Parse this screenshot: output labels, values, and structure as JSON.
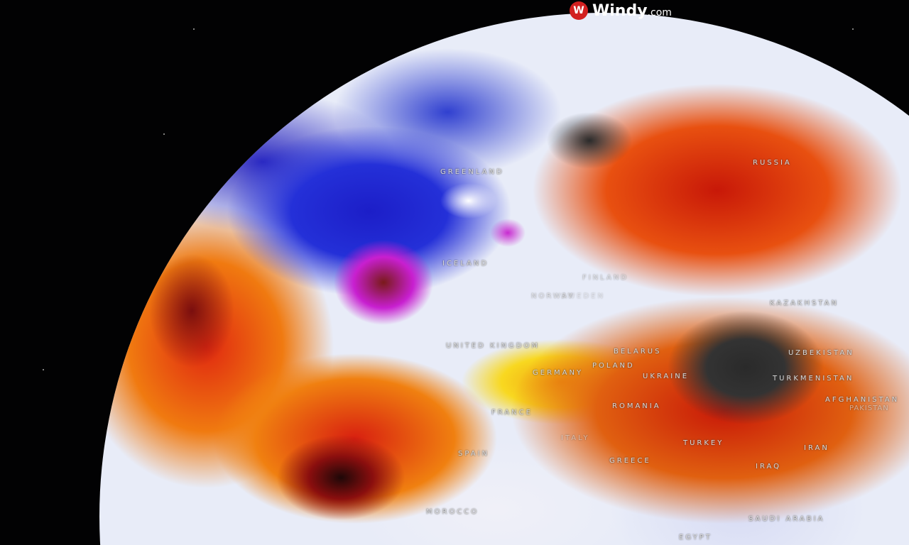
{
  "brand": {
    "name": "Windy",
    "suffix": ".com",
    "icon": "windy-logo-icon"
  },
  "labels": [
    {
      "id": "greenland",
      "text": "GREENLAND"
    },
    {
      "id": "russia",
      "text": "RUSSIA"
    },
    {
      "id": "iceland",
      "text": "ICELAND"
    },
    {
      "id": "finland",
      "text": "FINLAND"
    },
    {
      "id": "norway",
      "text": "NORWAY"
    },
    {
      "id": "sweden",
      "text": "SWEDEN"
    },
    {
      "id": "united-kingdom",
      "text": "UNITED KINGDOM"
    },
    {
      "id": "belarus",
      "text": "BELARUS"
    },
    {
      "id": "poland",
      "text": "POLAND"
    },
    {
      "id": "germany",
      "text": "GERMANY"
    },
    {
      "id": "ukraine",
      "text": "UKRAINE"
    },
    {
      "id": "kazakhstan",
      "text": "KAZAKHSTAN"
    },
    {
      "id": "uzbekistan",
      "text": "UZBEKISTAN"
    },
    {
      "id": "turkmenistan",
      "text": "TURKMENISTAN"
    },
    {
      "id": "afghanistan",
      "text": "AFGHANISTAN"
    },
    {
      "id": "pakistan",
      "text": "PAKISTAN"
    },
    {
      "id": "france",
      "text": "FRANCE"
    },
    {
      "id": "romania",
      "text": "ROMANIA"
    },
    {
      "id": "spain",
      "text": "SPAIN"
    },
    {
      "id": "italy",
      "text": "ITALY"
    },
    {
      "id": "greece",
      "text": "GREECE"
    },
    {
      "id": "turkey",
      "text": "TURKEY"
    },
    {
      "id": "iran",
      "text": "IRAN"
    },
    {
      "id": "iraq",
      "text": "IRAQ"
    },
    {
      "id": "morocco",
      "text": "MOROCCO"
    },
    {
      "id": "saudi-arabia",
      "text": "SAUDI ARABIA"
    },
    {
      "id": "egypt",
      "text": "EGYPT"
    }
  ]
}
